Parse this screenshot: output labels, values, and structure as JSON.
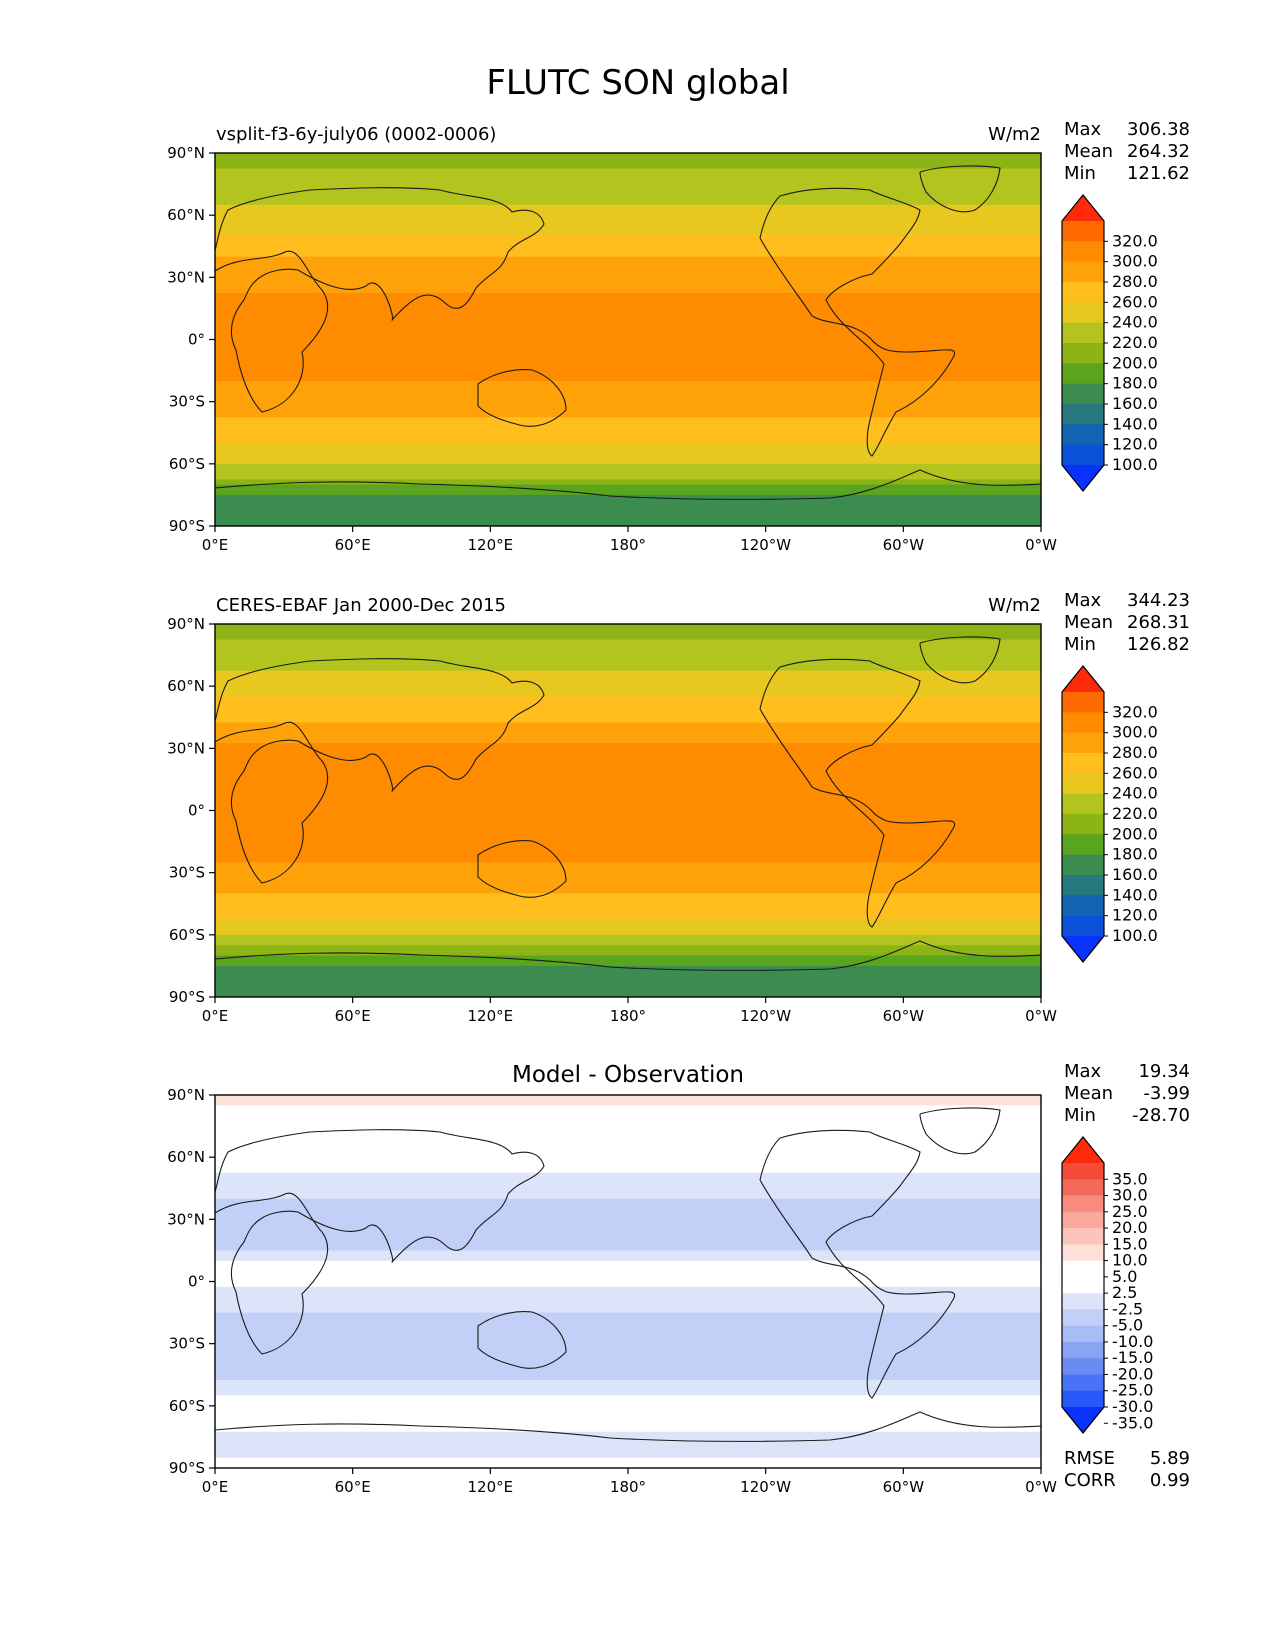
{
  "figure": {
    "title": "FLUTC SON global"
  },
  "chart_data": [
    {
      "type": "heatmap",
      "panel": "test",
      "title": "vsplit-f3-6y-july06 (0002-0006)",
      "units": "W/m2",
      "stats": {
        "max_label": "Max",
        "max": "306.38",
        "mean_label": "Mean",
        "mean": "264.32",
        "min_label": "Min",
        "min": "121.62"
      },
      "x_ticks": [
        "0°E",
        "60°E",
        "120°E",
        "180°",
        "120°W",
        "60°W",
        "0°W"
      ],
      "y_ticks": [
        "90°N",
        "60°N",
        "30°N",
        "0°",
        "30°S",
        "60°S",
        "90°S"
      ],
      "colorbar": {
        "levels": [
          "320.0",
          "300.0",
          "280.0",
          "260.0",
          "240.0",
          "220.0",
          "200.0",
          "180.0",
          "160.0",
          "140.0",
          "120.0",
          "100.0"
        ],
        "colors": [
          "#ff2a0a",
          "#ff6a00",
          "#ff8c00",
          "#ffa20a",
          "#ffbe1e",
          "#e8c81e",
          "#b4c41e",
          "#8cb414",
          "#5aa41e",
          "#3c8c50",
          "#287880",
          "#1464b4",
          "#0a50d8",
          "#0a32ff"
        ]
      },
      "lat_profile": [
        {
          "lat": 90,
          "value": 195
        },
        {
          "lat": 75,
          "value": 205
        },
        {
          "lat": 60,
          "value": 225
        },
        {
          "lat": 45,
          "value": 250
        },
        {
          "lat": 30,
          "value": 275
        },
        {
          "lat": 15,
          "value": 285
        },
        {
          "lat": 0,
          "value": 283
        },
        {
          "lat": -15,
          "value": 285
        },
        {
          "lat": -30,
          "value": 272
        },
        {
          "lat": -45,
          "value": 250
        },
        {
          "lat": -60,
          "value": 222
        },
        {
          "lat": -68,
          "value": 195
        },
        {
          "lat": -75,
          "value": 160
        },
        {
          "lat": -90,
          "value": 150
        }
      ]
    },
    {
      "type": "heatmap",
      "panel": "reference",
      "title": "CERES-EBAF Jan 2000-Dec 2015",
      "units": "W/m2",
      "stats": {
        "max_label": "Max",
        "max": "344.23",
        "mean_label": "Mean",
        "mean": "268.31",
        "min_label": "Min",
        "min": "126.82"
      },
      "x_ticks": [
        "0°E",
        "60°E",
        "120°E",
        "180°",
        "120°W",
        "60°W",
        "0°W"
      ],
      "y_ticks": [
        "90°N",
        "60°N",
        "30°N",
        "0°",
        "30°S",
        "60°S",
        "90°S"
      ],
      "colorbar": {
        "levels": [
          "320.0",
          "300.0",
          "280.0",
          "260.0",
          "240.0",
          "220.0",
          "200.0",
          "180.0",
          "160.0",
          "140.0",
          "120.0",
          "100.0"
        ],
        "colors": [
          "#ff2a0a",
          "#ff6a00",
          "#ff8c00",
          "#ffa20a",
          "#ffbe1e",
          "#e8c81e",
          "#b4c41e",
          "#8cb414",
          "#5aa41e",
          "#3c8c50",
          "#287880",
          "#1464b4",
          "#0a50d8",
          "#0a32ff"
        ]
      },
      "lat_profile": [
        {
          "lat": 90,
          "value": 190
        },
        {
          "lat": 75,
          "value": 210
        },
        {
          "lat": 60,
          "value": 230
        },
        {
          "lat": 45,
          "value": 255
        },
        {
          "lat": 30,
          "value": 285
        },
        {
          "lat": 15,
          "value": 292
        },
        {
          "lat": 0,
          "value": 288
        },
        {
          "lat": -15,
          "value": 290
        },
        {
          "lat": -30,
          "value": 275
        },
        {
          "lat": -45,
          "value": 252
        },
        {
          "lat": -60,
          "value": 225
        },
        {
          "lat": -68,
          "value": 190
        },
        {
          "lat": -75,
          "value": 155
        },
        {
          "lat": -90,
          "value": 145
        }
      ]
    },
    {
      "type": "heatmap",
      "panel": "difference",
      "title": "Model - Observation",
      "stats": {
        "max_label": "Max",
        "max": "19.34",
        "mean_label": "Mean",
        "mean": "-3.99",
        "min_label": "Min",
        "min": "-28.70"
      },
      "metrics": {
        "rmse_label": "RMSE",
        "rmse": "5.89",
        "corr_label": "CORR",
        "corr": "0.99"
      },
      "x_ticks": [
        "0°E",
        "60°E",
        "120°E",
        "180°",
        "120°W",
        "60°W",
        "0°W"
      ],
      "y_ticks": [
        "90°N",
        "60°N",
        "30°N",
        "0°",
        "30°S",
        "60°S",
        "90°S"
      ],
      "colorbar": {
        "levels": [
          "35.0",
          "30.0",
          "25.0",
          "20.0",
          "15.0",
          "10.0",
          "5.0",
          "2.5",
          "-2.5",
          "-5.0",
          "-10.0",
          "-15.0",
          "-20.0",
          "-25.0",
          "-30.0",
          "-35.0"
        ],
        "colors": [
          "#ff2a0a",
          "#f44a3a",
          "#f46a5a",
          "#f88a7e",
          "#faa89c",
          "#fcc4bc",
          "#fee0da",
          "#ffffff",
          "#ffffff",
          "#dce4fa",
          "#c2d0f8",
          "#a8bcf6",
          "#8aa4f4",
          "#6a8cf2",
          "#4a72f4",
          "#2a58f8",
          "#0a32ff"
        ]
      },
      "lat_profile": [
        {
          "lat": 90,
          "value": 6
        },
        {
          "lat": 75,
          "value": 3
        },
        {
          "lat": 60,
          "value": -1
        },
        {
          "lat": 45,
          "value": -4
        },
        {
          "lat": 30,
          "value": -7
        },
        {
          "lat": 15,
          "value": -5
        },
        {
          "lat": 5,
          "value": -1
        },
        {
          "lat": -5,
          "value": -3
        },
        {
          "lat": -15,
          "value": -5
        },
        {
          "lat": -30,
          "value": -6
        },
        {
          "lat": -45,
          "value": -6
        },
        {
          "lat": -55,
          "value": -3
        },
        {
          "lat": -62,
          "value": 3
        },
        {
          "lat": -68,
          "value": -1
        },
        {
          "lat": -75,
          "value": -4
        },
        {
          "lat": -90,
          "value": -2
        }
      ]
    }
  ]
}
